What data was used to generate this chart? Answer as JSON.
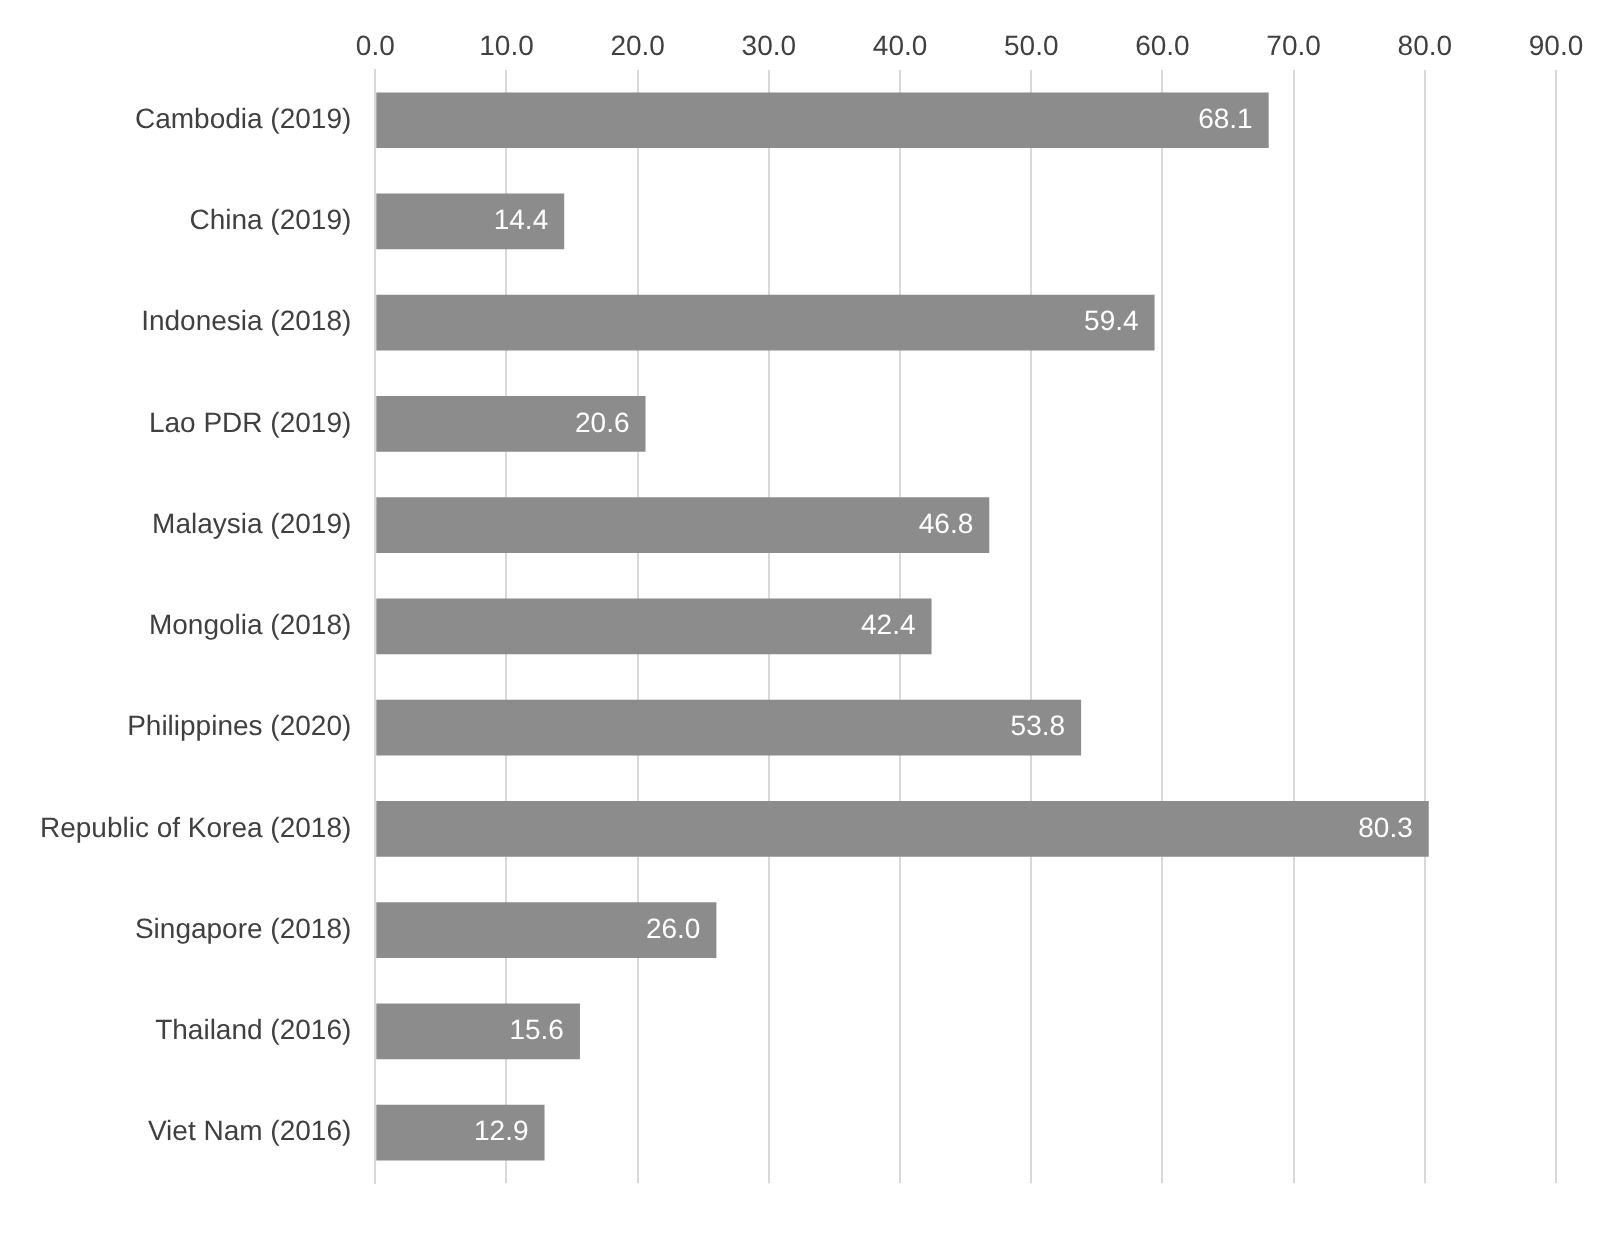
{
  "chart_data": {
    "type": "bar",
    "orientation": "horizontal",
    "categories": [
      "Cambodia (2019)",
      "China (2019)",
      "Indonesia (2018)",
      "Lao PDR (2019)",
      "Malaysia (2019)",
      "Mongolia (2018)",
      "Philippines (2020)",
      "Republic of Korea (2018)",
      "Singapore (2018)",
      "Thailand (2016)",
      "Viet Nam (2016)"
    ],
    "values": [
      68.1,
      14.4,
      59.4,
      20.6,
      46.8,
      42.4,
      53.8,
      80.3,
      26.0,
      15.6,
      12.9
    ],
    "value_labels": [
      "68.1",
      "14.4",
      "59.4",
      "20.6",
      "46.8",
      "42.4",
      "53.8",
      "80.3",
      "26.0",
      "15.6",
      "12.9"
    ],
    "color": "#8c8c8c",
    "xlim": [
      0,
      90
    ],
    "xticks": [
      {
        "value": 0,
        "label": "0.0"
      },
      {
        "value": 10,
        "label": "10.0"
      },
      {
        "value": 20,
        "label": "20.0"
      },
      {
        "value": 30,
        "label": "30.0"
      },
      {
        "value": 40,
        "label": "40.0"
      },
      {
        "value": 50,
        "label": "50.0"
      },
      {
        "value": 60,
        "label": "60.0"
      },
      {
        "value": 70,
        "label": "70.0"
      },
      {
        "value": 80,
        "label": "80.0"
      },
      {
        "value": 90,
        "label": "90.0"
      }
    ],
    "grid": "x"
  }
}
